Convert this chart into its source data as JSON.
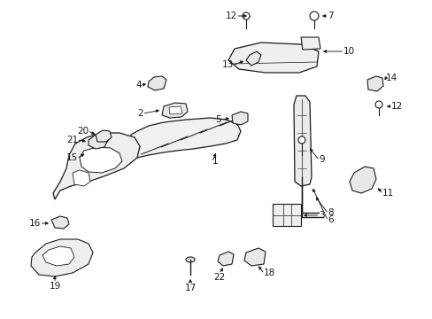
{
  "bg_color": "#ffffff",
  "line_color": "#1a1a1a",
  "label_color": "#000000",
  "figsize": [
    4.89,
    3.6
  ],
  "dpi": 100,
  "font_size": 7.5
}
